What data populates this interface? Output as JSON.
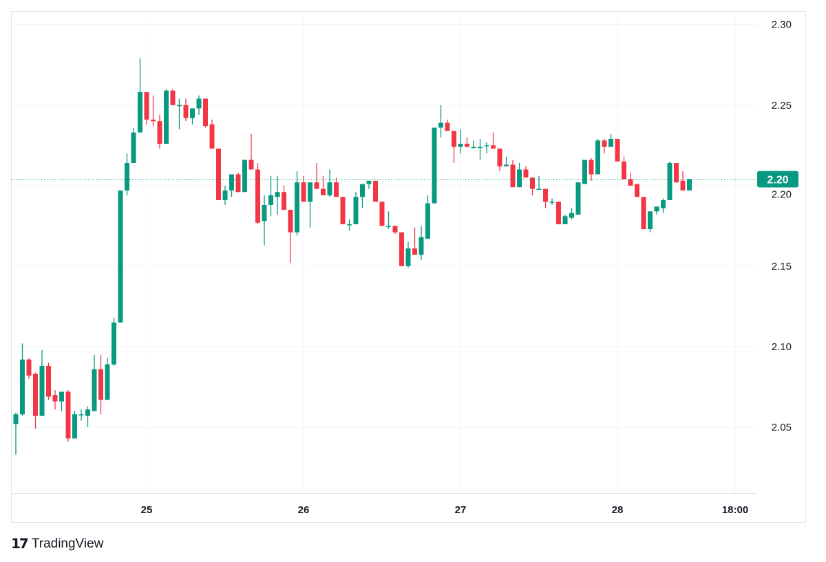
{
  "chart_data": {
    "type": "candlestick",
    "title": "",
    "interval": "1h",
    "colors": {
      "up": "#089981",
      "down": "#F23645",
      "grid": "#F0F3FA",
      "last_price": "#089981"
    },
    "ylim": [
      2.009,
      2.308
    ],
    "y_ticks": [
      "2.30",
      "2.25",
      "2.20",
      "2.15",
      "2.10",
      "2.05"
    ],
    "x_ticks": [
      {
        "label": "25",
        "index": 20
      },
      {
        "label": "26",
        "index": 44
      },
      {
        "label": "27",
        "index": 68
      },
      {
        "label": "28",
        "index": 92
      },
      {
        "label": "18:00",
        "index": 110
      }
    ],
    "grid": true,
    "last_price_label": "2.20",
    "last_price": 2.204,
    "ohlc": [
      [
        2.052,
        2.059,
        2.033,
        2.058
      ],
      [
        2.058,
        2.102,
        2.057,
        2.092
      ],
      [
        2.092,
        2.093,
        2.08,
        2.082
      ],
      [
        2.083,
        2.084,
        2.049,
        2.057
      ],
      [
        2.057,
        2.098,
        2.057,
        2.088
      ],
      [
        2.088,
        2.09,
        2.067,
        2.069
      ],
      [
        2.07,
        2.073,
        2.061,
        2.066
      ],
      [
        2.066,
        2.072,
        2.06,
        2.072
      ],
      [
        2.072,
        2.073,
        2.041,
        2.043
      ],
      [
        2.043,
        2.06,
        2.043,
        2.058
      ],
      [
        2.058,
        2.061,
        2.054,
        2.058
      ],
      [
        2.057,
        2.063,
        2.05,
        2.061
      ],
      [
        2.06,
        2.095,
        2.06,
        2.086
      ],
      [
        2.086,
        2.095,
        2.058,
        2.067
      ],
      [
        2.067,
        2.093,
        2.067,
        2.089
      ],
      [
        2.089,
        2.118,
        2.088,
        2.115
      ],
      [
        2.115,
        2.197,
        2.115,
        2.197
      ],
      [
        2.197,
        2.22,
        2.194,
        2.214
      ],
      [
        2.214,
        2.236,
        2.214,
        2.233
      ],
      [
        2.233,
        2.279,
        2.233,
        2.258
      ],
      [
        2.258,
        2.258,
        2.238,
        2.241
      ],
      [
        2.241,
        2.256,
        2.237,
        2.24
      ],
      [
        2.24,
        2.244,
        2.223,
        2.226
      ],
      [
        2.226,
        2.26,
        2.226,
        2.259
      ],
      [
        2.259,
        2.26,
        2.25,
        2.25
      ],
      [
        2.25,
        2.254,
        2.235,
        2.25
      ],
      [
        2.25,
        2.254,
        2.24,
        2.242
      ],
      [
        2.242,
        2.248,
        2.238,
        2.248
      ],
      [
        2.248,
        2.256,
        2.244,
        2.254
      ],
      [
        2.254,
        2.254,
        2.236,
        2.237
      ],
      [
        2.238,
        2.241,
        2.223,
        2.223
      ],
      [
        2.223,
        2.223,
        2.191,
        2.191
      ],
      [
        2.191,
        2.2,
        2.188,
        2.197
      ],
      [
        2.197,
        2.207,
        2.193,
        2.207
      ],
      [
        2.207,
        2.208,
        2.196,
        2.196
      ],
      [
        2.196,
        2.216,
        2.196,
        2.216
      ],
      [
        2.216,
        2.232,
        2.21,
        2.21
      ],
      [
        2.21,
        2.214,
        2.176,
        2.177
      ],
      [
        2.178,
        2.194,
        2.163,
        2.188
      ],
      [
        2.188,
        2.206,
        2.181,
        2.194
      ],
      [
        2.193,
        2.206,
        2.182,
        2.196
      ],
      [
        2.196,
        2.2,
        2.185,
        2.185
      ],
      [
        2.185,
        2.185,
        2.152,
        2.171
      ],
      [
        2.171,
        2.209,
        2.169,
        2.202
      ],
      [
        2.202,
        2.206,
        2.19,
        2.19
      ],
      [
        2.19,
        2.202,
        2.174,
        2.202
      ],
      [
        2.202,
        2.214,
        2.198,
        2.198
      ],
      [
        2.198,
        2.206,
        2.194,
        2.194
      ],
      [
        2.194,
        2.21,
        2.193,
        2.202
      ],
      [
        2.202,
        2.205,
        2.193,
        2.193
      ],
      [
        2.193,
        2.193,
        2.176,
        2.176
      ],
      [
        2.176,
        2.179,
        2.172,
        2.176
      ],
      [
        2.176,
        2.196,
        2.176,
        2.193
      ],
      [
        2.193,
        2.201,
        2.186,
        2.201
      ],
      [
        2.201,
        2.203,
        2.198,
        2.203
      ],
      [
        2.203,
        2.203,
        2.19,
        2.19
      ],
      [
        2.19,
        2.19,
        2.175,
        2.175
      ],
      [
        2.175,
        2.184,
        2.173,
        2.175
      ],
      [
        2.175,
        2.175,
        2.17,
        2.171
      ],
      [
        2.171,
        2.171,
        2.15,
        2.15
      ],
      [
        2.15,
        2.165,
        2.149,
        2.161
      ],
      [
        2.161,
        2.174,
        2.157,
        2.157
      ],
      [
        2.157,
        2.175,
        2.154,
        2.168
      ],
      [
        2.167,
        2.194,
        2.167,
        2.189
      ],
      [
        2.189,
        2.236,
        2.189,
        2.236
      ],
      [
        2.236,
        2.25,
        2.23,
        2.239
      ],
      [
        2.239,
        2.241,
        2.234,
        2.234
      ],
      [
        2.234,
        2.234,
        2.214,
        2.224
      ],
      [
        2.224,
        2.235,
        2.22,
        2.226
      ],
      [
        2.226,
        2.23,
        2.224,
        2.224
      ],
      [
        2.224,
        2.228,
        2.223,
        2.224
      ],
      [
        2.224,
        2.229,
        2.216,
        2.224
      ],
      [
        2.225,
        2.227,
        2.22,
        2.225
      ],
      [
        2.225,
        2.233,
        2.223,
        2.223
      ],
      [
        2.223,
        2.223,
        2.209,
        2.212
      ],
      [
        2.212,
        2.218,
        2.212,
        2.213
      ],
      [
        2.213,
        2.216,
        2.199,
        2.199
      ],
      [
        2.199,
        2.214,
        2.199,
        2.21
      ],
      [
        2.21,
        2.212,
        2.205,
        2.205
      ],
      [
        2.205,
        2.205,
        2.194,
        2.198
      ],
      [
        2.198,
        2.206,
        2.198,
        2.198
      ],
      [
        2.198,
        2.198,
        2.186,
        2.19
      ],
      [
        2.19,
        2.192,
        2.188,
        2.19
      ],
      [
        2.19,
        2.19,
        2.176,
        2.176
      ],
      [
        2.176,
        2.182,
        2.176,
        2.181
      ],
      [
        2.18,
        2.186,
        2.179,
        2.183
      ],
      [
        2.182,
        2.202,
        2.182,
        2.202
      ],
      [
        2.201,
        2.216,
        2.201,
        2.216
      ],
      [
        2.216,
        2.217,
        2.203,
        2.207
      ],
      [
        2.207,
        2.229,
        2.207,
        2.228
      ],
      [
        2.228,
        2.229,
        2.22,
        2.224
      ],
      [
        2.224,
        2.232,
        2.224,
        2.229
      ],
      [
        2.229,
        2.229,
        2.215,
        2.215
      ],
      [
        2.215,
        2.218,
        2.204,
        2.204
      ],
      [
        2.204,
        2.208,
        2.2,
        2.2
      ],
      [
        2.201,
        2.201,
        2.193,
        2.193
      ],
      [
        2.193,
        2.193,
        2.173,
        2.173
      ],
      [
        2.173,
        2.184,
        2.171,
        2.184
      ],
      [
        2.184,
        2.187,
        2.182,
        2.187
      ],
      [
        2.186,
        2.192,
        2.183,
        2.191
      ],
      [
        2.191,
        2.215,
        2.191,
        2.214
      ],
      [
        2.214,
        2.214,
        2.202,
        2.202
      ],
      [
        2.203,
        2.209,
        2.197,
        2.197
      ],
      [
        2.197,
        2.204,
        2.197,
        2.204
      ]
    ]
  },
  "branding": {
    "logo_text": "TradingView",
    "logo_mark": "TV"
  }
}
